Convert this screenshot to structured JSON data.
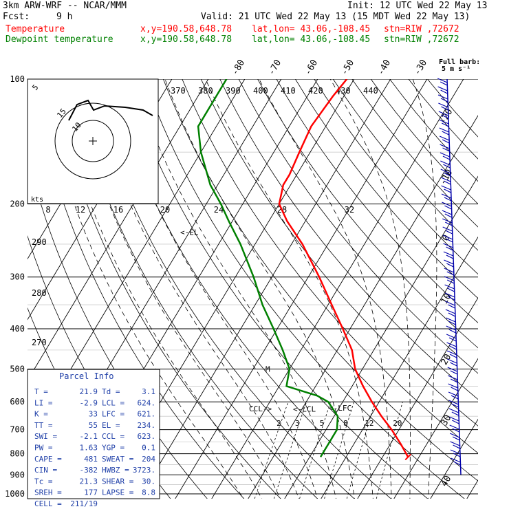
{
  "header": {
    "model": "3km ARW-WRF -- NCAR/MMM",
    "init": "Init: 12 UTC Wed 22 May 13",
    "fcst_label": "Fcst:",
    "fcst_value": "9 h",
    "valid": "Valid: 21 UTC Wed 22 May 13 (15 MDT Wed 22 May 13)",
    "temp_label": "Temperature",
    "dew_label": "Dewpoint temperature",
    "xy": "x,y=190.58,648.78",
    "latlon": "lat,lon= 43.06,-108.45",
    "stn": "stn=RIW ,72672",
    "colors": {
      "temperature": "#ff0000",
      "dewpoint": "#008000",
      "barb": "#0000aa"
    }
  },
  "barb_legend": {
    "line1": "Full barb:",
    "line2": "5 m s⁻¹"
  },
  "chart_data": {
    "type": "line",
    "title": "",
    "y_axis": {
      "scale": "log",
      "range": [
        1000,
        100
      ],
      "ticks": [
        100,
        200,
        300,
        400,
        500,
        600,
        700,
        800,
        900,
        1000
      ]
    },
    "x_axis": {
      "scale": "skewed",
      "isotherm_labels": [
        "-80",
        "-70",
        "-60",
        "-50",
        "-40",
        "-30",
        "-20",
        "-10",
        "0",
        "10",
        "20",
        "30",
        "40"
      ]
    },
    "grid": true,
    "series": [
      {
        "name": "Temperature",
        "color": "#ff0000",
        "points": [
          [
            815,
            27
          ],
          [
            760,
            23
          ],
          [
            700,
            18
          ],
          [
            650,
            13
          ],
          [
            600,
            8
          ],
          [
            550,
            3
          ],
          [
            500,
            -2
          ],
          [
            450,
            -6
          ],
          [
            400,
            -12
          ],
          [
            350,
            -19
          ],
          [
            300,
            -27
          ],
          [
            250,
            -37
          ],
          [
            220,
            -45
          ],
          [
            200,
            -50
          ],
          [
            180,
            -52
          ],
          [
            170,
            -52
          ],
          [
            150,
            -53
          ],
          [
            130,
            -54
          ],
          [
            110,
            -53
          ],
          [
            100,
            -52
          ]
        ]
      },
      {
        "name": "Dewpoint temperature",
        "color": "#008000",
        "points": [
          [
            815,
            3
          ],
          [
            760,
            3
          ],
          [
            700,
            3
          ],
          [
            650,
            1
          ],
          [
            600,
            -4
          ],
          [
            580,
            -8
          ],
          [
            550,
            -18
          ],
          [
            500,
            -20
          ],
          [
            450,
            -25
          ],
          [
            400,
            -31
          ],
          [
            350,
            -38
          ],
          [
            300,
            -45
          ],
          [
            250,
            -54
          ],
          [
            220,
            -61
          ],
          [
            200,
            -66
          ],
          [
            180,
            -72
          ],
          [
            150,
            -80
          ],
          [
            130,
            -85
          ],
          [
            110,
            -85
          ],
          [
            100,
            -85
          ]
        ]
      }
    ],
    "annotations": [
      {
        "text": "<-EL",
        "p": 234
      },
      {
        "text": "CCL->",
        "p": 623
      },
      {
        "text": "<-LCL",
        "p": 624
      },
      {
        "text": "<-LFC",
        "p": 621
      },
      {
        "text": "M",
        "p": 500
      }
    ],
    "theta_labels": [
      "370",
      "380",
      "390",
      "400",
      "410",
      "420",
      "430",
      "440"
    ],
    "mixing_labels": [
      "2",
      "3",
      "5",
      "8",
      "12",
      "20"
    ],
    "hodo_speed_labels": [
      "8",
      "12",
      "16",
      "20",
      "24",
      "28",
      "32"
    ],
    "hodo_axis_label": "kts",
    "hodo_rings": [
      "5",
      "10",
      "15"
    ],
    "hodo_dir_labels": [
      "290",
      "280",
      "270"
    ],
    "parcel_info": {
      "title": "Parcel Info",
      "rows": [
        [
          "T  =",
          "21.9",
          "Td =",
          "3.1"
        ],
        [
          "LI =",
          "-2.9",
          "LCL =",
          "624."
        ],
        [
          "K  =",
          "33",
          "LFC =",
          "621."
        ],
        [
          "TT =",
          "55",
          "EL =",
          "234."
        ],
        [
          "SWI =",
          "-2.1",
          "CCL =",
          "623."
        ],
        [
          "PW =",
          "1.63",
          "YGP =",
          "0.1"
        ],
        [
          "CAPE =",
          "481",
          "SWEAT =",
          "204"
        ],
        [
          "CIN =",
          "-382",
          "HWBZ =",
          "3723."
        ],
        [
          "Tc =",
          "21.3",
          "SHEAR =",
          "30."
        ],
        [
          "SREH =",
          "177",
          "LAPSE =",
          "8.8"
        ],
        [
          "CELL =",
          "211/19",
          "",
          ""
        ]
      ]
    }
  }
}
